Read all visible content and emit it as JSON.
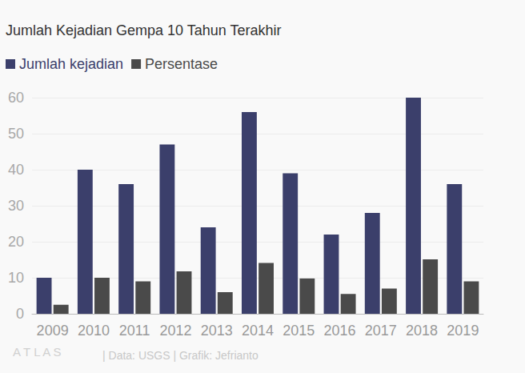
{
  "chart_data": {
    "type": "bar",
    "title": "Jumlah Kejadian Gempa 10 Tahun Terakhir",
    "categories": [
      "2009",
      "2010",
      "2011",
      "2012",
      "2013",
      "2014",
      "2015",
      "2016",
      "2017",
      "2018",
      "2019"
    ],
    "series": [
      {
        "name": "Jumlah kejadian",
        "color": "#3b3f6b",
        "values": [
          10,
          40,
          36,
          47,
          24,
          56,
          39,
          22,
          28,
          60,
          36
        ]
      },
      {
        "name": "Persentase",
        "color": "#4a4a4a",
        "values": [
          2.5,
          10,
          9,
          11.8,
          6,
          14.1,
          9.8,
          5.5,
          7,
          15.1,
          9
        ]
      }
    ],
    "ylim": [
      0,
      60
    ],
    "yticks": [
      0,
      10,
      20,
      30,
      40,
      50,
      60
    ],
    "grid": true,
    "legend": "top-left",
    "annotations": [
      "ATLAS",
      "| Data: USGS | Grafik: Jefrianto"
    ]
  }
}
